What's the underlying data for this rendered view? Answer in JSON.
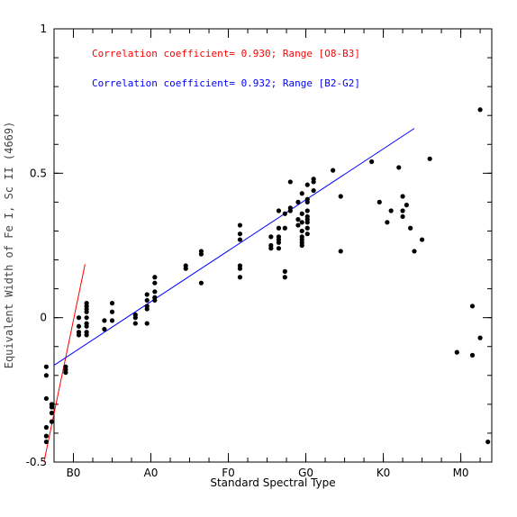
{
  "chart_data": {
    "type": "scatter",
    "xlabel": "Standard Spectral Type",
    "ylabel": "Equivalent Width of Fe I, Sc II (4669)",
    "x_range": [
      -0.2,
      5.45
    ],
    "ylim": [
      -0.5,
      1.0
    ],
    "x_ticks": [
      {
        "value": 0.05,
        "label": "B0"
      },
      {
        "value": 1.05,
        "label": "A0"
      },
      {
        "value": 2.05,
        "label": "F0"
      },
      {
        "value": 3.05,
        "label": "G0"
      },
      {
        "value": 4.05,
        "label": "K0"
      },
      {
        "value": 5.05,
        "label": "M0"
      }
    ],
    "y_ticks": [
      {
        "value": -0.5,
        "label": "-0.5"
      },
      {
        "value": 0.0,
        "label": "0"
      },
      {
        "value": 0.5,
        "label": "0.5"
      },
      {
        "value": 1.0,
        "label": "1"
      }
    ],
    "annotations": [
      {
        "text": "Correlation coefficient= 0.930; Range [O8-B3]",
        "color": "#ff0000"
      },
      {
        "text": "Correlation coefficient= 0.932; Range [B2-G2]",
        "color": "#0000ff"
      }
    ],
    "fit_lines": [
      {
        "color": "#ff0000",
        "x": [
          -0.33,
          0.2
        ],
        "y": [
          -0.54,
          0.185
        ]
      },
      {
        "color": "#0000ff",
        "x": [
          -0.2,
          4.45
        ],
        "y": [
          -0.165,
          0.655
        ]
      }
    ],
    "points": [
      [
        -0.3,
        -0.17
      ],
      [
        -0.3,
        -0.2
      ],
      [
        -0.3,
        -0.28
      ],
      [
        -0.3,
        -0.38
      ],
      [
        -0.3,
        -0.41
      ],
      [
        -0.3,
        -0.43
      ],
      [
        -0.23,
        -0.3
      ],
      [
        -0.23,
        -0.31
      ],
      [
        -0.23,
        -0.33
      ],
      [
        -0.23,
        -0.36
      ],
      [
        -0.05,
        -0.17
      ],
      [
        -0.05,
        -0.18
      ],
      [
        -0.05,
        -0.19
      ],
      [
        0.12,
        0.0
      ],
      [
        0.12,
        -0.03
      ],
      [
        0.12,
        -0.06
      ],
      [
        0.12,
        -0.05
      ],
      [
        0.22,
        0.04
      ],
      [
        0.22,
        0.05
      ],
      [
        0.22,
        0.03
      ],
      [
        0.22,
        0.02
      ],
      [
        0.22,
        0.0
      ],
      [
        0.22,
        -0.02
      ],
      [
        0.22,
        -0.03
      ],
      [
        0.22,
        -0.05
      ],
      [
        0.22,
        -0.06
      ],
      [
        0.45,
        -0.01
      ],
      [
        0.45,
        -0.04
      ],
      [
        0.55,
        0.05
      ],
      [
        0.55,
        0.02
      ],
      [
        0.55,
        -0.01
      ],
      [
        0.85,
        0.01
      ],
      [
        0.85,
        0.0
      ],
      [
        0.85,
        -0.02
      ],
      [
        1.0,
        0.08
      ],
      [
        1.0,
        0.06
      ],
      [
        1.0,
        0.04
      ],
      [
        1.0,
        0.03
      ],
      [
        1.0,
        -0.02
      ],
      [
        1.1,
        0.14
      ],
      [
        1.1,
        0.12
      ],
      [
        1.1,
        0.09
      ],
      [
        1.1,
        0.07
      ],
      [
        1.1,
        0.06
      ],
      [
        1.5,
        0.18
      ],
      [
        1.5,
        0.17
      ],
      [
        1.7,
        0.23
      ],
      [
        1.7,
        0.22
      ],
      [
        1.7,
        0.12
      ],
      [
        2.2,
        0.32
      ],
      [
        2.2,
        0.29
      ],
      [
        2.2,
        0.27
      ],
      [
        2.2,
        0.18
      ],
      [
        2.2,
        0.17
      ],
      [
        2.2,
        0.14
      ],
      [
        2.6,
        0.28
      ],
      [
        2.6,
        0.25
      ],
      [
        2.6,
        0.24
      ],
      [
        2.7,
        0.37
      ],
      [
        2.7,
        0.31
      ],
      [
        2.7,
        0.28
      ],
      [
        2.7,
        0.27
      ],
      [
        2.7,
        0.26
      ],
      [
        2.7,
        0.24
      ],
      [
        2.78,
        0.36
      ],
      [
        2.78,
        0.31
      ],
      [
        2.78,
        0.16
      ],
      [
        2.78,
        0.14
      ],
      [
        2.85,
        0.47
      ],
      [
        2.85,
        0.38
      ],
      [
        2.85,
        0.37
      ],
      [
        2.95,
        0.4
      ],
      [
        2.95,
        0.34
      ],
      [
        2.95,
        0.32
      ],
      [
        3.0,
        0.43
      ],
      [
        3.0,
        0.36
      ],
      [
        3.0,
        0.33
      ],
      [
        3.0,
        0.3
      ],
      [
        3.0,
        0.28
      ],
      [
        3.0,
        0.27
      ],
      [
        3.0,
        0.26
      ],
      [
        3.0,
        0.25
      ],
      [
        3.07,
        0.46
      ],
      [
        3.07,
        0.41
      ],
      [
        3.07,
        0.4
      ],
      [
        3.07,
        0.37
      ],
      [
        3.07,
        0.35
      ],
      [
        3.07,
        0.34
      ],
      [
        3.07,
        0.33
      ],
      [
        3.07,
        0.31
      ],
      [
        3.07,
        0.29
      ],
      [
        3.15,
        0.48
      ],
      [
        3.15,
        0.47
      ],
      [
        3.15,
        0.44
      ],
      [
        3.4,
        0.51
      ],
      [
        3.5,
        0.42
      ],
      [
        3.5,
        0.23
      ],
      [
        3.9,
        0.54
      ],
      [
        4.0,
        0.4
      ],
      [
        4.1,
        0.33
      ],
      [
        4.15,
        0.37
      ],
      [
        4.3,
        0.42
      ],
      [
        4.3,
        0.37
      ],
      [
        4.25,
        0.52
      ],
      [
        4.3,
        0.35
      ],
      [
        4.35,
        0.39
      ],
      [
        4.4,
        0.31
      ],
      [
        4.45,
        0.23
      ],
      [
        4.55,
        0.27
      ],
      [
        4.65,
        0.55
      ],
      [
        5.0,
        -0.12
      ],
      [
        5.2,
        0.04
      ],
      [
        5.2,
        -0.13
      ],
      [
        5.3,
        -0.07
      ],
      [
        5.3,
        0.72
      ],
      [
        5.4,
        -0.43
      ]
    ]
  }
}
